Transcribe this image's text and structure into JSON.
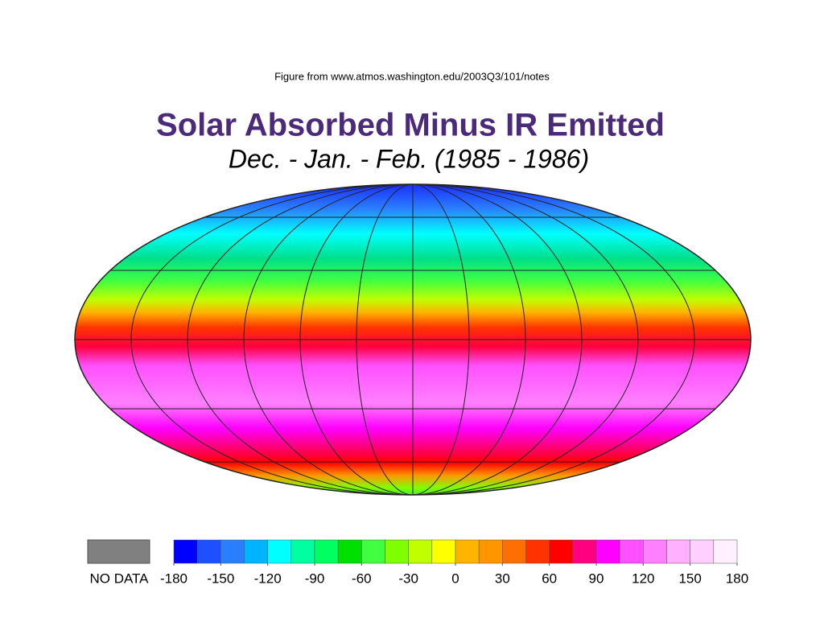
{
  "source": "Figure from www.atmos.washington.edu/2003Q3/101/notes",
  "title": "Solar Absorbed Minus IR Emitted",
  "subtitle": "Dec. - Jan. - Feb. (1985 - 1986)",
  "legend": {
    "no_data_label": "NO DATA",
    "no_data_color": "#808080",
    "lim": [
      -180,
      180
    ],
    "ticks": [
      -180,
      -150,
      -120,
      -90,
      -60,
      -30,
      0,
      30,
      60,
      90,
      120,
      150,
      180
    ],
    "colors": [
      "#0000ff",
      "#1e50ff",
      "#2a7fff",
      "#00b4ff",
      "#00ffff",
      "#00ffa0",
      "#00ff60",
      "#00e000",
      "#40ff40",
      "#80ff00",
      "#c0ff00",
      "#ffff00",
      "#ffb400",
      "#ff9600",
      "#ff6e00",
      "#ff3200",
      "#ff0000",
      "#ff0080",
      "#ff00ff",
      "#ff50ff",
      "#ff80ff",
      "#ffb0ff",
      "#ffd0ff",
      "#fff0ff"
    ]
  }
}
